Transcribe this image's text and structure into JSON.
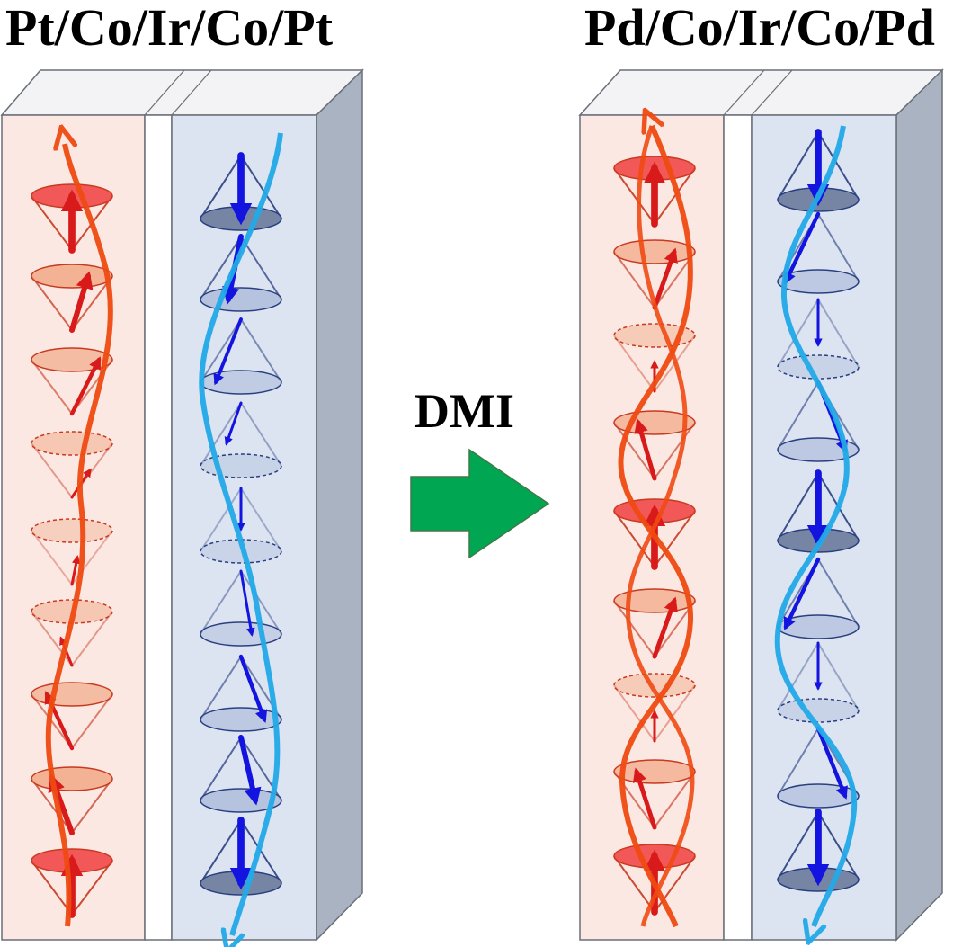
{
  "left_title": "Pt/Co/Ir/Co/Pt",
  "right_title": "Pd/Co/Ir/Co/Pd",
  "center_label": "DMI",
  "center_arrow": {
    "icon": "right-arrow-icon",
    "fill": "#00a651",
    "stroke": "#3d7a45"
  },
  "colors": {
    "left_layer_fill": "#fbe8e2",
    "right_layer_fill": "#dce4f2",
    "slab_side": "#aab3c2",
    "slab_top": "#f4f4f6",
    "red_arrow": "#e01e1e",
    "red_helix": "#f04a12",
    "blue_arrow": "#1a1ae8",
    "blue_helix": "#22aae8"
  }
}
